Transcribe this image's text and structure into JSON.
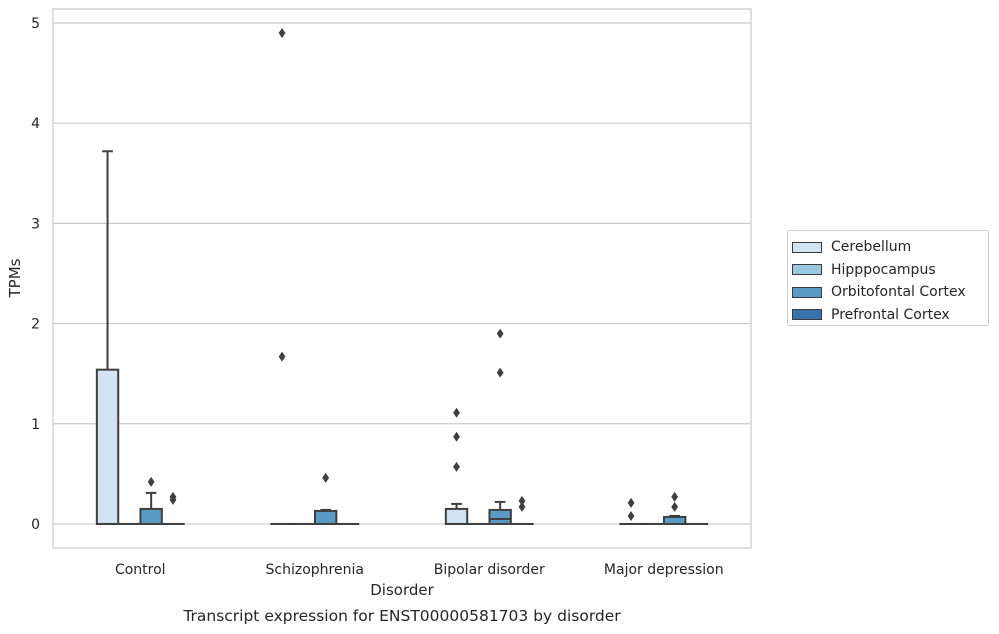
{
  "chart_data": {
    "type": "box",
    "title": "Transcript expression for ENST00000581703 by disorder",
    "xlabel": "Disorder",
    "ylabel": "TPMs",
    "ylim": [
      -0.24,
      5.14
    ],
    "yticks": [
      0,
      1,
      2,
      3,
      4,
      5
    ],
    "grid": "horizontal",
    "legend_position": "right",
    "categories": [
      "Control",
      "Schizophrenia",
      "Bipolar disorder",
      "Major depression"
    ],
    "series": [
      {
        "name": "Cerebellum",
        "color": "#d2e3f3",
        "boxes": [
          {
            "q1": 0,
            "median": 0,
            "q3": 1.54,
            "whisker_low": 0,
            "whisker_high": 3.72,
            "outliers": []
          },
          {
            "q1": 0,
            "median": 0,
            "q3": 0,
            "whisker_low": 0,
            "whisker_high": 0,
            "outliers": [
              1.67,
              4.9
            ]
          },
          {
            "q1": 0,
            "median": 0,
            "q3": 0.15,
            "whisker_low": 0,
            "whisker_high": 0.2,
            "outliers": [
              0.57,
              0.87,
              1.11
            ]
          },
          {
            "q1": 0,
            "median": 0,
            "q3": 0,
            "whisker_low": 0,
            "whisker_high": 0,
            "outliers": [
              0.08,
              0.21
            ]
          }
        ]
      },
      {
        "name": "Hipppocampus",
        "color": "#9ac8e0",
        "boxes": [
          {
            "q1": 0,
            "median": 0,
            "q3": 0,
            "whisker_low": 0,
            "whisker_high": 0,
            "outliers": []
          },
          {
            "q1": 0,
            "median": 0,
            "q3": 0,
            "whisker_low": 0,
            "whisker_high": 0,
            "outliers": []
          },
          {
            "q1": 0,
            "median": 0,
            "q3": 0,
            "whisker_low": 0,
            "whisker_high": 0,
            "outliers": []
          },
          {
            "q1": 0,
            "median": 0,
            "q3": 0,
            "whisker_low": 0,
            "whisker_high": 0,
            "outliers": []
          }
        ]
      },
      {
        "name": "Orbitofontal Cortex",
        "color": "#5a9bc5",
        "boxes": [
          {
            "q1": 0,
            "median": 0,
            "q3": 0.15,
            "whisker_low": 0,
            "whisker_high": 0.31,
            "outliers": [
              0.42
            ]
          },
          {
            "q1": 0,
            "median": 0,
            "q3": 0.13,
            "whisker_low": 0,
            "whisker_high": 0.14,
            "outliers": [
              0.46
            ]
          },
          {
            "q1": 0,
            "median": 0.05,
            "q3": 0.14,
            "whisker_low": 0,
            "whisker_high": 0.22,
            "outliers": [
              1.51,
              1.9
            ]
          },
          {
            "q1": 0,
            "median": 0,
            "q3": 0.07,
            "whisker_low": 0,
            "whisker_high": 0.08,
            "outliers": [
              0.17,
              0.27
            ]
          }
        ]
      },
      {
        "name": "Prefrontal Cortex",
        "color": "#3872ad",
        "boxes": [
          {
            "q1": 0,
            "median": 0,
            "q3": 0,
            "whisker_low": 0,
            "whisker_high": 0,
            "outliers": [
              0.24,
              0.27
            ]
          },
          {
            "q1": 0,
            "median": 0,
            "q3": 0,
            "whisker_low": 0,
            "whisker_high": 0,
            "outliers": []
          },
          {
            "q1": 0,
            "median": 0,
            "q3": 0,
            "whisker_low": 0,
            "whisker_high": 0,
            "outliers": [
              0.17,
              0.23
            ]
          },
          {
            "q1": 0,
            "median": 0,
            "q3": 0,
            "whisker_low": 0,
            "whisker_high": 0,
            "outliers": []
          }
        ]
      }
    ]
  }
}
